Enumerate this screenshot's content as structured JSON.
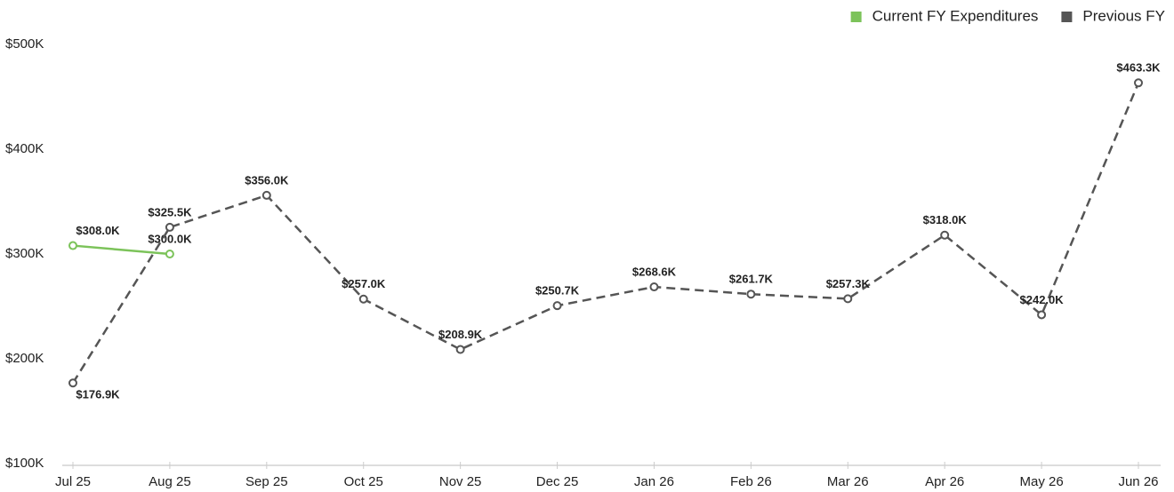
{
  "chart_data": {
    "type": "line",
    "categories": [
      "Jul 25",
      "Aug 25",
      "Sep 25",
      "Oct 25",
      "Nov 25",
      "Dec 25",
      "Jan 26",
      "Feb 26",
      "Mar 26",
      "Apr 26",
      "May 26",
      "Jun 26"
    ],
    "series": [
      {
        "name": "Current FY Expenditures",
        "color": "#7cc35a",
        "dashed": false,
        "values": [
          308000,
          300000,
          null,
          null,
          null,
          null,
          null,
          null,
          null,
          null,
          null,
          null
        ],
        "value_labels": [
          "$308.0K",
          "$300.0K",
          null,
          null,
          null,
          null,
          null,
          null,
          null,
          null,
          null,
          null
        ]
      },
      {
        "name": "Previous FY",
        "color": "#555555",
        "dashed": true,
        "values": [
          176900,
          325500,
          356000,
          257000,
          208900,
          250700,
          268600,
          261700,
          257300,
          318000,
          242000,
          463300
        ],
        "value_labels": [
          "$176.9K",
          "$325.5K",
          "$356.0K",
          "$257.0K",
          "$208.9K",
          "$250.7K",
          "$268.6K",
          "$261.7K",
          "$257.3K",
          "$318.0K",
          "$242.0K",
          "$463.3K"
        ]
      }
    ],
    "ylim": [
      100000,
      500000
    ],
    "yticks": [
      {
        "value": 100000,
        "label": "$100K"
      },
      {
        "value": 200000,
        "label": "$200K"
      },
      {
        "value": 300000,
        "label": "$300K"
      },
      {
        "value": 400000,
        "label": "$400K"
      },
      {
        "value": 500000,
        "label": "$500K"
      }
    ],
    "grid": false,
    "legend": "top-right"
  }
}
